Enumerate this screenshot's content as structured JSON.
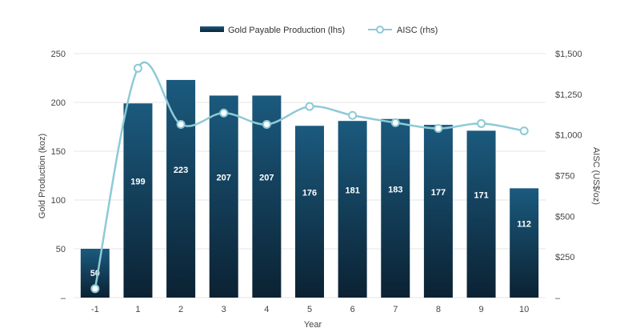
{
  "chart_data": {
    "type": "bar",
    "categories": [
      "-1",
      "1",
      "2",
      "3",
      "4",
      "5",
      "6",
      "7",
      "8",
      "9",
      "10"
    ],
    "series": [
      {
        "name": "Gold Payable Production (lhs)",
        "type": "bar",
        "axis": "left",
        "values": [
          50,
          199,
          223,
          207,
          207,
          176,
          181,
          183,
          177,
          171,
          112
        ]
      },
      {
        "name": "AISC (rhs)",
        "type": "line",
        "axis": "right",
        "values": [
          55,
          1410,
          1065,
          1135,
          1065,
          1175,
          1120,
          1075,
          1040,
          1070,
          1025
        ]
      }
    ],
    "data_labels": [
      "50",
      "199",
      "223",
      "207",
      "207",
      "176",
      "181",
      "183",
      "177",
      "171",
      "112"
    ],
    "xlabel": "Year",
    "ylabel_left": "Gold Production (koz)",
    "ylabel_right": "AISC (US$/oz)",
    "ylim_left": [
      0,
      250
    ],
    "ylim_right": [
      0,
      1500
    ],
    "yticks_left": [
      "–",
      "50",
      "100",
      "150",
      "200",
      "250"
    ],
    "yticks_right": [
      "–",
      "$250",
      "$500",
      "$750",
      "$1,000",
      "$1,250",
      "$1,500"
    ],
    "grid": true,
    "legend_position": "top-center",
    "colors": {
      "bar_top": "#1b5a7e",
      "bar_bottom": "#0b2233",
      "line": "#8ecad6",
      "marker_fill": "#ffffff",
      "grid": "#e6e6e6"
    }
  }
}
